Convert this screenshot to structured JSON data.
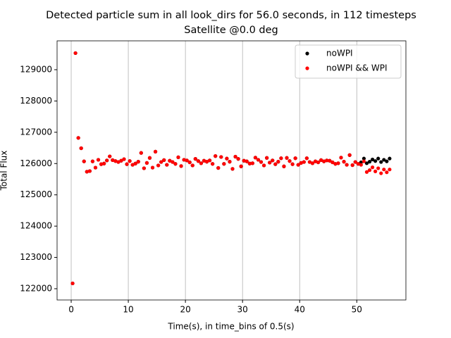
{
  "chart_data": {
    "type": "scatter",
    "title": "Detected particle sum in all look_dirs for 56.0 seconds, in 112 timesteps",
    "subtitle": "Satellite @0.0 deg",
    "x_label": "Time(s), in time_bins of 0.5(s)",
    "y_label": "Total Flux",
    "xlim": [
      -2.47,
      58.6
    ],
    "ylim": [
      121640,
      129922
    ],
    "xticks": [
      0,
      10,
      20,
      30,
      40,
      50
    ],
    "yticks": [
      122000,
      123000,
      124000,
      125000,
      126000,
      127000,
      128000,
      129000
    ],
    "grid": "x",
    "legend": "upper right",
    "x": [
      0.25,
      0.75,
      1.25,
      1.75,
      2.25,
      2.75,
      3.25,
      3.75,
      4.25,
      4.75,
      5.25,
      5.75,
      6.25,
      6.75,
      7.25,
      7.75,
      8.25,
      8.75,
      9.25,
      9.75,
      10.25,
      10.75,
      11.25,
      11.75,
      12.25,
      12.75,
      13.25,
      13.75,
      14.25,
      14.75,
      15.25,
      15.75,
      16.25,
      16.75,
      17.25,
      17.75,
      18.25,
      18.75,
      19.25,
      19.75,
      20.25,
      20.75,
      21.25,
      21.75,
      22.25,
      22.75,
      23.25,
      23.75,
      24.25,
      24.75,
      25.25,
      25.75,
      26.25,
      26.75,
      27.25,
      27.75,
      28.25,
      28.75,
      29.25,
      29.75,
      30.25,
      30.75,
      31.25,
      31.75,
      32.25,
      32.75,
      33.25,
      33.75,
      34.25,
      34.75,
      35.25,
      35.75,
      36.25,
      36.75,
      37.25,
      37.75,
      38.25,
      38.75,
      39.25,
      39.75,
      40.25,
      40.75,
      41.25,
      41.75,
      42.25,
      42.75,
      43.25,
      43.75,
      44.25,
      44.75,
      45.25,
      45.75,
      46.25,
      46.75,
      47.25,
      47.75,
      48.25,
      48.75,
      49.25,
      49.75,
      50.25,
      50.75,
      51.25,
      51.75,
      52.25,
      52.75,
      53.25,
      53.75,
      54.25,
      54.75,
      55.25,
      55.75
    ],
    "series": [
      {
        "name": "noWPI",
        "color": "#000000",
        "values": [
          122170,
          129530,
          126820,
          126490,
          126070,
          125740,
          125760,
          126070,
          125870,
          126120,
          125980,
          126000,
          126100,
          126230,
          126110,
          126080,
          126050,
          126090,
          126140,
          125980,
          126080,
          125960,
          126000,
          126060,
          126340,
          125850,
          126020,
          126180,
          125870,
          126380,
          125940,
          126050,
          126110,
          125960,
          126090,
          126050,
          125990,
          126200,
          125920,
          126120,
          126100,
          126040,
          125940,
          126150,
          126080,
          126010,
          126090,
          126060,
          126100,
          125990,
          126240,
          125860,
          126210,
          125990,
          126160,
          126060,
          125830,
          126220,
          126150,
          125910,
          126090,
          126070,
          126000,
          126010,
          126190,
          126120,
          126050,
          125940,
          126180,
          126030,
          126100,
          125980,
          126060,
          126170,
          125910,
          126180,
          126080,
          125980,
          126170,
          125960,
          126020,
          126050,
          126170,
          126050,
          126010,
          126070,
          126040,
          126110,
          126070,
          126100,
          126090,
          126040,
          125990,
          126010,
          126190,
          126060,
          125960,
          126270,
          125950,
          126050,
          125990,
          126040,
          126160,
          126010,
          126060,
          126130,
          126080,
          126160,
          126050,
          126120,
          126070,
          126160
        ]
      },
      {
        "name": "noWPI && WPI",
        "color": "#ff0000",
        "values": [
          122170,
          129530,
          126820,
          126490,
          126070,
          125740,
          125760,
          126070,
          125870,
          126120,
          125980,
          126000,
          126100,
          126230,
          126110,
          126080,
          126050,
          126090,
          126140,
          125980,
          126080,
          125960,
          126000,
          126060,
          126340,
          125850,
          126020,
          126180,
          125870,
          126380,
          125940,
          126050,
          126110,
          125960,
          126090,
          126050,
          125990,
          126200,
          125920,
          126120,
          126100,
          126040,
          125940,
          126150,
          126080,
          126010,
          126090,
          126060,
          126100,
          125990,
          126240,
          125860,
          126210,
          125990,
          126160,
          126060,
          125830,
          126220,
          126150,
          125910,
          126090,
          126070,
          126000,
          126010,
          126190,
          126120,
          126050,
          125940,
          126180,
          126030,
          126100,
          125980,
          126060,
          126170,
          125910,
          126180,
          126080,
          125980,
          126170,
          125960,
          126020,
          126050,
          126170,
          126050,
          126010,
          126070,
          126040,
          126110,
          126070,
          126100,
          126090,
          126040,
          125990,
          126010,
          126190,
          126060,
          125960,
          126270,
          125950,
          126050,
          125990,
          125960,
          126070,
          125730,
          125790,
          125880,
          125750,
          125850,
          125690,
          125810,
          125720,
          125810
        ]
      }
    ]
  }
}
